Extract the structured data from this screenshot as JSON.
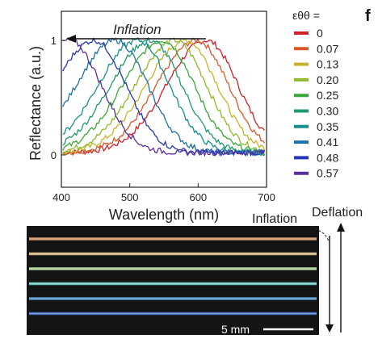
{
  "panel_label": "f",
  "chart_data": {
    "type": "line",
    "xlabel": "Wavelength (nm)",
    "ylabel": "Reflectance (a.u.)",
    "xlim": [
      400,
      700
    ],
    "ylim": [
      0,
      1
    ],
    "xticks": [
      "400",
      "500",
      "600",
      "700"
    ],
    "yticks": [
      "0",
      "1"
    ],
    "grid": false,
    "legend_title": "εθθ =",
    "legend_position": "right",
    "annotation": "Inflation",
    "series": [
      {
        "name": "0",
        "color": "#d0202a",
        "peak": 612
      },
      {
        "name": "0.07",
        "color": "#d9582a",
        "peak": 598
      },
      {
        "name": "0.13",
        "color": "#c9b22a",
        "peak": 582
      },
      {
        "name": "0.20",
        "color": "#8cbc2c",
        "peak": 566
      },
      {
        "name": "0.25",
        "color": "#3aa838",
        "peak": 548
      },
      {
        "name": "0.30",
        "color": "#1f9a70",
        "peak": 530
      },
      {
        "name": "0.35",
        "color": "#16908e",
        "peak": 512
      },
      {
        "name": "0.41",
        "color": "#1f6fa8",
        "peak": 480
      },
      {
        "name": "0.48",
        "color": "#2236b8",
        "peak": 448
      },
      {
        "name": "0.57",
        "color": "#5a2f9c",
        "peak": 412
      }
    ]
  },
  "photo": {
    "inflation_label": "Inflation",
    "deflation_label": "Deflation",
    "scale_bar_label": "5 mm",
    "fiber_colors": [
      "#e0a070",
      "#e8c890",
      "#b8e0a0",
      "#70d8d0",
      "#5c9ed8",
      "#4b79d0"
    ]
  }
}
